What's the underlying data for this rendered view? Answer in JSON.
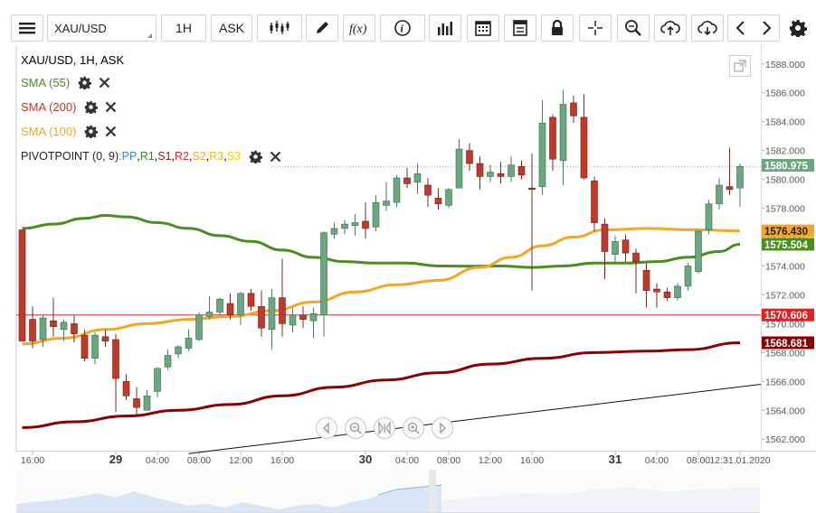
{
  "toolbar": {
    "symbol": "XAU/USD",
    "timeframe": "1H",
    "price_side": "ASK",
    "icons": [
      "menu-icon",
      "candle-type-icon",
      "draw-icon",
      "function-icon",
      "info-icon",
      "indicators-icon",
      "calendar-icon",
      "template-icon",
      "lock-icon",
      "crosshair-icon",
      "zoom-icon",
      "upload-icon",
      "download-icon",
      "back-icon",
      "forward-icon",
      "settings-icon"
    ]
  },
  "legend": {
    "title": "XAU/USD, 1H, ASK",
    "sma55": "SMA (55)",
    "sma200": "SMA (200)",
    "sma100": "SMA (100)",
    "pivot_label": "PIVOTPOINT (0, 9)",
    "pivot_sep": " : ",
    "pivot_pp": "PP",
    "pivot_r1": "R1",
    "pivot_s1": "S1",
    "pivot_r2": "R2",
    "pivot_s2": "S2",
    "pivot_r3": "R3",
    "pivot_s3": "S3",
    "comma": ", "
  },
  "colors": {
    "up": "#6aa780",
    "down": "#c0392b",
    "sma55": "#4a8f1e",
    "sma200": "#8b0000",
    "sma100": "#f5a623",
    "pivot_line": "#d93030",
    "pp": "#3d7fd9",
    "r1": "#3a7d3a",
    "s1": "#8b1a1a",
    "r2": "#d93030",
    "s2": "#f5a623",
    "r3": "#e8b820",
    "s3": "#f0d000"
  },
  "chart_data": {
    "type": "candlestick",
    "ylim": [
      1561.2,
      1589.3
    ],
    "y_ticks": [
      "1562.000",
      "1564.000",
      "1566.000",
      "1568.000",
      "1570.000",
      "1572.000",
      "1574.000",
      "1576.000",
      "1578.000",
      "1580.000",
      "1582.000",
      "1584.000",
      "1586.000",
      "1588.000"
    ],
    "x_ticks": [
      {
        "i": 1,
        "label": "16:00",
        "bold": false
      },
      {
        "i": 9,
        "label": "29",
        "bold": true
      },
      {
        "i": 13,
        "label": "04:00",
        "bold": false
      },
      {
        "i": 17,
        "label": "08:00",
        "bold": false
      },
      {
        "i": 21,
        "label": "12:00",
        "bold": false
      },
      {
        "i": 25,
        "label": "16:00",
        "bold": false
      },
      {
        "i": 33,
        "label": "30",
        "bold": true
      },
      {
        "i": 37,
        "label": "04:00",
        "bold": false
      },
      {
        "i": 41,
        "label": "08:00",
        "bold": false
      },
      {
        "i": 45,
        "label": "12:00",
        "bold": false
      },
      {
        "i": 49,
        "label": "16:00",
        "bold": false
      },
      {
        "i": 57,
        "label": "31",
        "bold": true
      },
      {
        "i": 61,
        "label": "04:00",
        "bold": false
      },
      {
        "i": 65,
        "label": "08:00",
        "bold": false
      },
      {
        "i": 69,
        "label": "12:31.01.2020",
        "bold": false
      }
    ],
    "candles": [
      [
        1576.5,
        1576.5,
        1568.8,
        1568.8
      ],
      [
        1570.3,
        1571.2,
        1568.3,
        1568.8
      ],
      [
        1568.9,
        1570.6,
        1568.4,
        1570.4
      ],
      [
        1570.2,
        1571.8,
        1569.1,
        1569.8
      ],
      [
        1569.6,
        1570.3,
        1568.8,
        1570.1
      ],
      [
        1570.0,
        1570.6,
        1568.7,
        1569.3
      ],
      [
        1569.2,
        1569.6,
        1567.4,
        1567.6
      ],
      [
        1567.6,
        1569.4,
        1567.2,
        1569.2
      ],
      [
        1569.1,
        1569.6,
        1568.4,
        1568.8
      ],
      [
        1568.9,
        1569.3,
        1563.9,
        1566.2
      ],
      [
        1566.0,
        1566.5,
        1564.7,
        1565.0
      ],
      [
        1564.8,
        1565.6,
        1563.7,
        1564.2
      ],
      [
        1564.0,
        1565.4,
        1564.0,
        1565.0
      ],
      [
        1565.3,
        1567.0,
        1564.9,
        1566.9
      ],
      [
        1567.0,
        1568.2,
        1566.8,
        1567.8
      ],
      [
        1567.9,
        1568.5,
        1567.6,
        1568.4
      ],
      [
        1568.3,
        1569.6,
        1568.1,
        1569.0
      ],
      [
        1568.9,
        1570.8,
        1568.8,
        1570.6
      ],
      [
        1570.5,
        1571.9,
        1570.3,
        1570.8
      ],
      [
        1570.8,
        1571.8,
        1570.6,
        1571.7
      ],
      [
        1571.4,
        1572.1,
        1570.3,
        1570.6
      ],
      [
        1570.6,
        1572.2,
        1569.9,
        1572.1
      ],
      [
        1572.1,
        1572.4,
        1570.9,
        1571.2
      ],
      [
        1571.2,
        1572.3,
        1569.1,
        1569.7
      ],
      [
        1569.6,
        1572.4,
        1568.2,
        1571.8
      ],
      [
        1571.8,
        1574.5,
        1569.1,
        1570.0
      ],
      [
        1569.9,
        1571.1,
        1569.4,
        1570.6
      ],
      [
        1570.6,
        1571.2,
        1569.7,
        1570.3
      ],
      [
        1570.2,
        1571.1,
        1569.0,
        1570.7
      ],
      [
        1570.6,
        1576.4,
        1569.1,
        1576.3
      ],
      [
        1576.2,
        1577.0,
        1575.9,
        1576.6
      ],
      [
        1576.6,
        1577.2,
        1576.2,
        1576.9
      ],
      [
        1576.8,
        1577.6,
        1576.1,
        1577.0
      ],
      [
        1577.1,
        1578.4,
        1575.9,
        1576.6
      ],
      [
        1576.7,
        1578.9,
        1576.4,
        1578.4
      ],
      [
        1578.2,
        1579.8,
        1577.8,
        1578.5
      ],
      [
        1578.4,
        1580.3,
        1578.1,
        1580.1
      ],
      [
        1580.1,
        1580.8,
        1579.4,
        1579.7
      ],
      [
        1579.8,
        1581.1,
        1579.0,
        1580.4
      ],
      [
        1579.6,
        1580.1,
        1578.1,
        1578.9
      ],
      [
        1578.7,
        1579.4,
        1577.9,
        1578.3
      ],
      [
        1578.2,
        1579.4,
        1578.0,
        1579.3
      ],
      [
        1579.4,
        1582.8,
        1579.4,
        1582.1
      ],
      [
        1582.0,
        1582.5,
        1580.6,
        1581.1
      ],
      [
        1581.1,
        1581.6,
        1579.3,
        1580.2
      ],
      [
        1580.2,
        1581.0,
        1579.8,
        1580.5
      ],
      [
        1580.4,
        1581.2,
        1579.7,
        1580.2
      ],
      [
        1580.2,
        1581.6,
        1579.8,
        1581.0
      ],
      [
        1580.9,
        1581.3,
        1580.0,
        1580.3
      ],
      [
        1579.4,
        1581.8,
        1572.3,
        1579.3
      ],
      [
        1579.5,
        1585.5,
        1578.9,
        1583.9
      ],
      [
        1584.3,
        1584.5,
        1580.6,
        1581.4
      ],
      [
        1581.3,
        1586.2,
        1579.6,
        1585.2
      ],
      [
        1585.3,
        1585.8,
        1583.9,
        1584.4
      ],
      [
        1584.3,
        1585.9,
        1580.0,
        1580.1
      ],
      [
        1579.9,
        1580.2,
        1576.4,
        1577.0
      ],
      [
        1576.9,
        1577.3,
        1573.1,
        1575.0
      ],
      [
        1574.8,
        1576.1,
        1574.3,
        1575.7
      ],
      [
        1575.8,
        1576.2,
        1574.3,
        1574.9
      ],
      [
        1574.9,
        1575.2,
        1572.1,
        1574.3
      ],
      [
        1573.7,
        1574.2,
        1571.1,
        1572.3
      ],
      [
        1572.4,
        1572.8,
        1571.1,
        1572.2
      ],
      [
        1572.2,
        1572.5,
        1571.6,
        1571.8
      ],
      [
        1571.8,
        1572.8,
        1571.6,
        1572.6
      ],
      [
        1572.6,
        1574.2,
        1572.3,
        1574.0
      ],
      [
        1573.6,
        1576.5,
        1573.5,
        1576.4
      ],
      [
        1576.5,
        1578.6,
        1576.2,
        1578.3
      ],
      [
        1578.3,
        1580.1,
        1577.9,
        1579.6
      ],
      [
        1579.5,
        1582.2,
        1578.9,
        1579.3
      ],
      [
        1579.4,
        1581.1,
        1578.1,
        1580.9
      ]
    ],
    "sma55": [
      [
        0,
        1576.6
      ],
      [
        3,
        1576.9
      ],
      [
        6,
        1577.3
      ],
      [
        8,
        1577.5
      ],
      [
        10,
        1577.4
      ],
      [
        13,
        1577.0
      ],
      [
        16,
        1576.6
      ],
      [
        19,
        1576.1
      ],
      [
        22,
        1575.7
      ],
      [
        25,
        1575.1
      ],
      [
        28,
        1574.6
      ],
      [
        31,
        1574.3
      ],
      [
        34,
        1574.2
      ],
      [
        37,
        1574.2
      ],
      [
        40,
        1574.0
      ],
      [
        43,
        1573.98
      ],
      [
        46,
        1574.0
      ],
      [
        49,
        1573.9
      ],
      [
        52,
        1574.0
      ],
      [
        55,
        1574.2
      ],
      [
        58,
        1574.2
      ],
      [
        61,
        1574.3
      ],
      [
        64,
        1574.6
      ],
      [
        67,
        1575.0
      ],
      [
        69,
        1575.5
      ]
    ],
    "sma200": [
      [
        0,
        1562.8
      ],
      [
        5,
        1563.2
      ],
      [
        10,
        1563.6
      ],
      [
        15,
        1564.0
      ],
      [
        20,
        1564.4
      ],
      [
        25,
        1565.0
      ],
      [
        30,
        1565.6
      ],
      [
        35,
        1566.1
      ],
      [
        40,
        1566.6
      ],
      [
        45,
        1567.2
      ],
      [
        50,
        1567.6
      ],
      [
        55,
        1568.0
      ],
      [
        60,
        1568.1
      ],
      [
        64,
        1568.2
      ],
      [
        69,
        1568.68
      ]
    ],
    "sma100": [
      [
        0,
        1568.6
      ],
      [
        4,
        1569.0
      ],
      [
        8,
        1569.6
      ],
      [
        12,
        1570.0
      ],
      [
        16,
        1570.3
      ],
      [
        20,
        1570.5
      ],
      [
        24,
        1570.9
      ],
      [
        28,
        1571.5
      ],
      [
        32,
        1572.2
      ],
      [
        36,
        1572.7
      ],
      [
        40,
        1573.0
      ],
      [
        44,
        1573.9
      ],
      [
        47,
        1574.6
      ],
      [
        50,
        1575.4
      ],
      [
        53,
        1576.0
      ],
      [
        56,
        1576.5
      ],
      [
        60,
        1576.6
      ],
      [
        65,
        1576.5
      ],
      [
        69,
        1576.43
      ]
    ],
    "trendline": [
      [
        16,
        1561.0
      ],
      [
        69,
        1565.8
      ]
    ],
    "pivot_pp": 1580.9,
    "horizontal_line": 1570.606,
    "price_labels": [
      {
        "value": 1580.975,
        "text": "1580.975",
        "bg": "#6aa780",
        "fg": "#ffffff"
      },
      {
        "value": 1576.43,
        "text": "1576.430",
        "bg": "#f5a623",
        "fg": "#222222"
      },
      {
        "value": 1575.504,
        "text": "1575.504",
        "bg": "#4a8f1e",
        "fg": "#ffffff"
      },
      {
        "value": 1570.606,
        "text": "1570.606",
        "bg": "#e02020",
        "fg": "#ffffff"
      },
      {
        "value": 1568.681,
        "text": "1568.681",
        "bg": "#8b0000",
        "fg": "#ffffff"
      }
    ]
  },
  "navbar": [
    "scroll-left-icon",
    "zoom-out-icon",
    "fit-icon",
    "zoom-in-icon",
    "scroll-right-icon"
  ]
}
